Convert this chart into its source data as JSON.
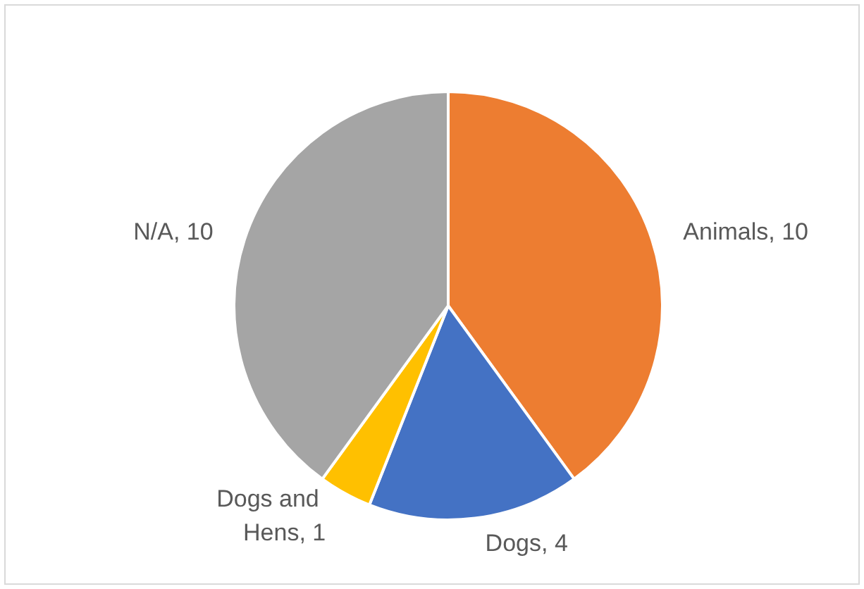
{
  "chart_data": {
    "type": "pie",
    "categories": [
      "Animals",
      "Dogs",
      "Dogs and Hens",
      "N/A"
    ],
    "values": [
      10,
      4,
      1,
      10
    ],
    "colors": [
      "#ed7d31",
      "#4472c4",
      "#ffc000",
      "#a5a5a5"
    ],
    "value_labels": [
      "10",
      "4",
      "1",
      "10"
    ],
    "legend": false
  }
}
